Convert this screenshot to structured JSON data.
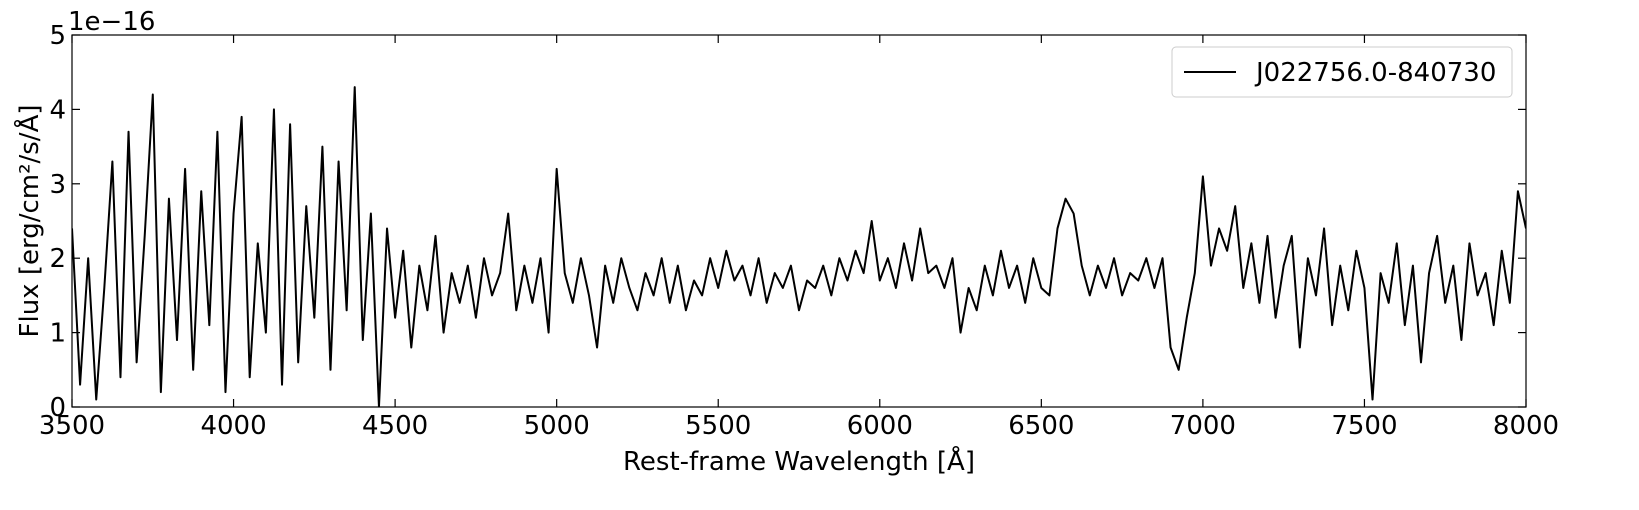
{
  "chart_data": {
    "type": "line",
    "xlabel": "Rest-frame Wavelength [Å]",
    "ylabel": "Flux [erg/cm²/s/Å]",
    "y_offset_label": "1e−16",
    "legend": "upper right",
    "grid": false,
    "xlim": [
      3500,
      8000
    ],
    "ylim": [
      0,
      5
    ],
    "xticks": [
      3500,
      4000,
      4500,
      5000,
      5500,
      6000,
      6500,
      7000,
      7500,
      8000
    ],
    "yticks": [
      0,
      1,
      2,
      3,
      4,
      5
    ],
    "x": [
      3500,
      3525,
      3550,
      3575,
      3600,
      3625,
      3650,
      3675,
      3700,
      3725,
      3750,
      3775,
      3800,
      3825,
      3850,
      3875,
      3900,
      3925,
      3950,
      3975,
      4000,
      4025,
      4050,
      4075,
      4100,
      4125,
      4150,
      4175,
      4200,
      4225,
      4250,
      4275,
      4300,
      4325,
      4350,
      4375,
      4400,
      4425,
      4450,
      4475,
      4500,
      4525,
      4550,
      4575,
      4600,
      4625,
      4650,
      4675,
      4700,
      4725,
      4750,
      4775,
      4800,
      4825,
      4850,
      4875,
      4900,
      4925,
      4950,
      4975,
      5000,
      5025,
      5050,
      5075,
      5100,
      5125,
      5150,
      5175,
      5200,
      5225,
      5250,
      5275,
      5300,
      5325,
      5350,
      5375,
      5400,
      5425,
      5450,
      5475,
      5500,
      5525,
      5550,
      5575,
      5600,
      5625,
      5650,
      5675,
      5700,
      5725,
      5750,
      5775,
      5800,
      5825,
      5850,
      5875,
      5900,
      5925,
      5950,
      5975,
      6000,
      6025,
      6050,
      6075,
      6100,
      6125,
      6150,
      6175,
      6200,
      6225,
      6250,
      6275,
      6300,
      6325,
      6350,
      6375,
      6400,
      6425,
      6450,
      6475,
      6500,
      6525,
      6550,
      6575,
      6600,
      6625,
      6650,
      6675,
      6700,
      6725,
      6750,
      6775,
      6800,
      6825,
      6850,
      6875,
      6900,
      6925,
      6950,
      6975,
      7000,
      7025,
      7050,
      7075,
      7100,
      7125,
      7150,
      7175,
      7200,
      7225,
      7250,
      7275,
      7300,
      7325,
      7350,
      7375,
      7400,
      7425,
      7450,
      7475,
      7500,
      7525,
      7550,
      7575,
      7600,
      7625,
      7650,
      7675,
      7700,
      7725,
      7750,
      7775,
      7800,
      7825,
      7850,
      7875,
      7900,
      7925,
      7950,
      7975,
      8000
    ],
    "series": [
      {
        "name": "J022756.0-840730",
        "color": "#000000",
        "values": [
          2.4,
          0.3,
          2.0,
          0.1,
          1.6,
          3.3,
          0.4,
          3.7,
          0.6,
          2.3,
          4.2,
          0.2,
          2.8,
          0.9,
          3.2,
          0.5,
          2.9,
          1.1,
          3.7,
          0.2,
          2.6,
          3.9,
          0.4,
          2.2,
          1.0,
          4.0,
          0.3,
          3.8,
          0.6,
          2.7,
          1.2,
          3.5,
          0.5,
          3.3,
          1.3,
          4.3,
          0.9,
          2.6,
          0.0,
          2.4,
          1.2,
          2.1,
          0.8,
          1.9,
          1.3,
          2.3,
          1.0,
          1.8,
          1.4,
          1.9,
          1.2,
          2.0,
          1.5,
          1.8,
          2.6,
          1.3,
          1.9,
          1.4,
          2.0,
          1.0,
          3.2,
          1.8,
          1.4,
          2.0,
          1.5,
          0.8,
          1.9,
          1.4,
          2.0,
          1.6,
          1.3,
          1.8,
          1.5,
          2.0,
          1.4,
          1.9,
          1.3,
          1.7,
          1.5,
          2.0,
          1.6,
          2.1,
          1.7,
          1.9,
          1.5,
          2.0,
          1.4,
          1.8,
          1.6,
          1.9,
          1.3,
          1.7,
          1.6,
          1.9,
          1.5,
          2.0,
          1.7,
          2.1,
          1.8,
          2.5,
          1.7,
          2.0,
          1.6,
          2.2,
          1.7,
          2.4,
          1.8,
          1.9,
          1.6,
          2.0,
          1.0,
          1.6,
          1.3,
          1.9,
          1.5,
          2.1,
          1.6,
          1.9,
          1.4,
          2.0,
          1.6,
          1.5,
          2.4,
          2.8,
          2.6,
          1.9,
          1.5,
          1.9,
          1.6,
          2.0,
          1.5,
          1.8,
          1.7,
          2.0,
          1.6,
          2.0,
          0.8,
          0.5,
          1.2,
          1.8,
          3.1,
          1.9,
          2.4,
          2.1,
          2.7,
          1.6,
          2.2,
          1.4,
          2.3,
          1.2,
          1.9,
          2.3,
          0.8,
          2.0,
          1.5,
          2.4,
          1.1,
          1.9,
          1.3,
          2.1,
          1.6,
          0.1,
          1.8,
          1.4,
          2.2,
          1.1,
          1.9,
          0.6,
          1.8,
          2.3,
          1.4,
          1.9,
          0.9,
          2.2,
          1.5,
          1.8,
          1.1,
          2.1,
          1.4,
          2.9,
          2.4
        ]
      }
    ]
  }
}
